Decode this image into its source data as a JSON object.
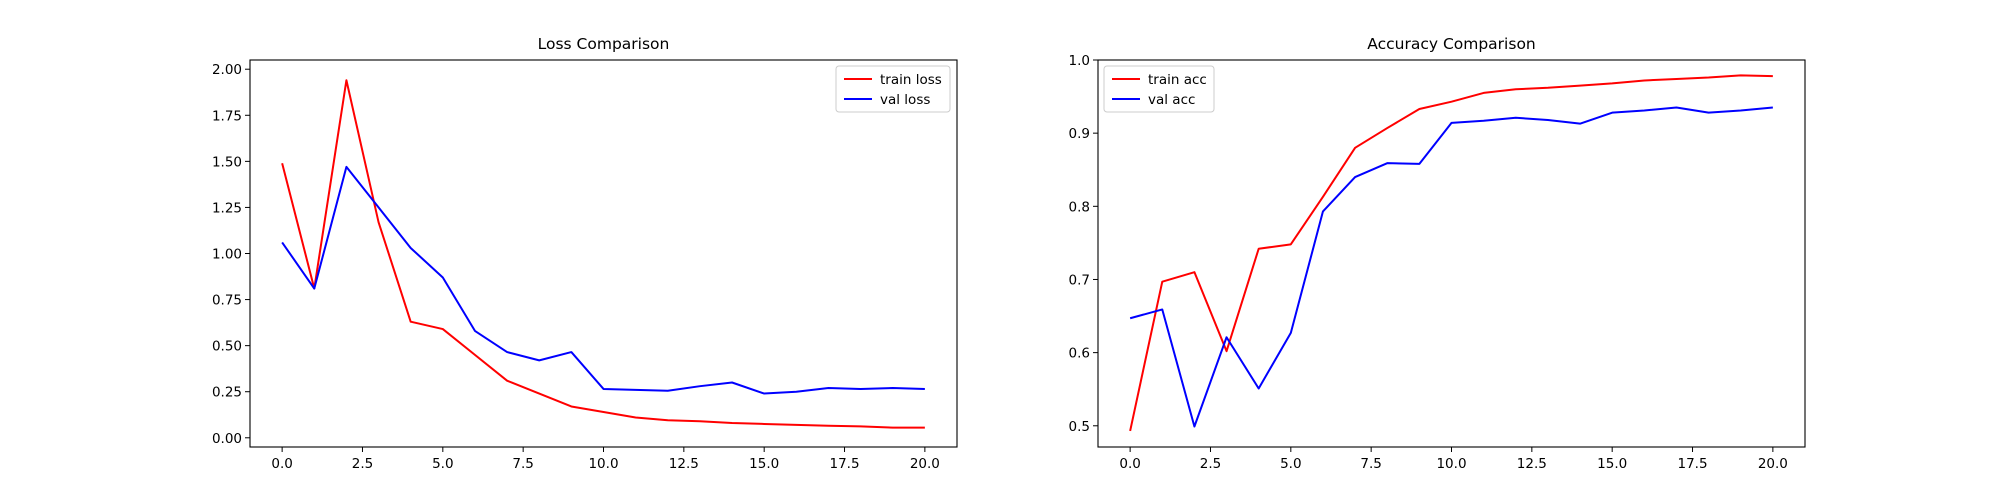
{
  "chart_data": [
    {
      "type": "line",
      "title": "Loss Comparison",
      "xlabel": "",
      "ylabel": "",
      "xlim": [
        -1,
        21
      ],
      "ylim": [
        -0.05,
        2.05
      ],
      "xticks": [
        0.0,
        2.5,
        5.0,
        7.5,
        10.0,
        12.5,
        15.0,
        17.5,
        20.0
      ],
      "yticks": [
        0.0,
        0.25,
        0.5,
        0.75,
        1.0,
        1.25,
        1.5,
        1.75,
        2.0
      ],
      "grid": false,
      "legend": "top-right",
      "x": [
        0,
        1,
        2,
        3,
        4,
        5,
        6,
        7,
        8,
        9,
        10,
        11,
        12,
        13,
        14,
        15,
        16,
        17,
        18,
        19,
        20
      ],
      "series": [
        {
          "name": "train loss",
          "color": "#ff0000",
          "values": [
            1.49,
            0.81,
            1.94,
            1.17,
            0.63,
            0.59,
            0.45,
            0.31,
            0.24,
            0.17,
            0.14,
            0.11,
            0.095,
            0.09,
            0.08,
            0.075,
            0.07,
            0.065,
            0.062,
            0.055,
            0.055
          ]
        },
        {
          "name": "val loss",
          "color": "#0000ff",
          "values": [
            1.06,
            0.81,
            1.47,
            1.25,
            1.03,
            0.87,
            0.58,
            0.465,
            0.42,
            0.465,
            0.265,
            0.26,
            0.255,
            0.28,
            0.3,
            0.24,
            0.25,
            0.27,
            0.265,
            0.27,
            0.265
          ]
        }
      ]
    },
    {
      "type": "line",
      "title": "Accuracy Comparison",
      "xlabel": "",
      "ylabel": "",
      "xlim": [
        -1,
        21
      ],
      "ylim": [
        0.471,
        1.0
      ],
      "xticks": [
        0.0,
        2.5,
        5.0,
        7.5,
        10.0,
        12.5,
        15.0,
        17.5,
        20.0
      ],
      "yticks": [
        0.5,
        0.6,
        0.7,
        0.8,
        0.9,
        1.0
      ],
      "grid": false,
      "legend": "top-left",
      "x": [
        0,
        1,
        2,
        3,
        4,
        5,
        6,
        7,
        8,
        9,
        10,
        11,
        12,
        13,
        14,
        15,
        16,
        17,
        18,
        19,
        20
      ],
      "series": [
        {
          "name": "train acc",
          "color": "#ff0000",
          "values": [
            0.493,
            0.697,
            0.71,
            0.602,
            0.742,
            0.748,
            0.813,
            0.88,
            0.907,
            0.933,
            0.943,
            0.955,
            0.96,
            0.962,
            0.965,
            0.968,
            0.972,
            0.974,
            0.976,
            0.979,
            0.978
          ]
        },
        {
          "name": "val acc",
          "color": "#0000ff",
          "values": [
            0.647,
            0.659,
            0.499,
            0.621,
            0.551,
            0.627,
            0.793,
            0.84,
            0.859,
            0.858,
            0.914,
            0.917,
            0.921,
            0.918,
            0.913,
            0.928,
            0.931,
            0.935,
            0.928,
            0.931,
            0.935
          ]
        }
      ]
    }
  ]
}
